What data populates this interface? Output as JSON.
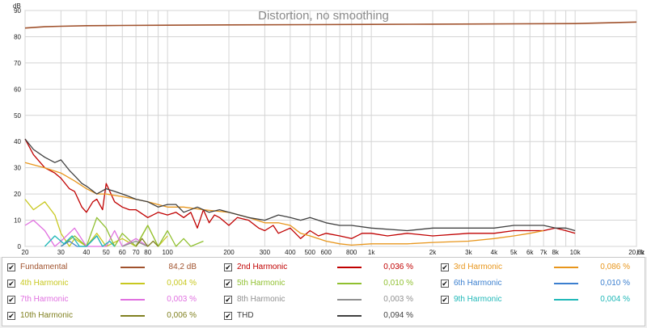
{
  "chart_data": {
    "type": "line",
    "title": "Distortion, no smoothing",
    "ylabel": "dB",
    "xunit": "Hz",
    "x_scale": "log",
    "xlim": [
      20,
      20000
    ],
    "ylim": [
      0,
      90
    ],
    "y_ticks": [
      "0",
      "10",
      "20",
      "30",
      "40",
      "50",
      "60",
      "70",
      "80",
      "90"
    ],
    "x_ticks": [
      {
        "value": 20,
        "label": "20"
      },
      {
        "value": 30,
        "label": "30"
      },
      {
        "value": 40,
        "label": "40"
      },
      {
        "value": 50,
        "label": "50"
      },
      {
        "value": 60,
        "label": "60"
      },
      {
        "value": 70,
        "label": "70"
      },
      {
        "value": 80,
        "label": "80"
      },
      {
        "value": 100,
        "label": "100"
      },
      {
        "value": 200,
        "label": "200"
      },
      {
        "value": 300,
        "label": "300"
      },
      {
        "value": 400,
        "label": "400"
      },
      {
        "value": 500,
        "label": "500"
      },
      {
        "value": 600,
        "label": "600"
      },
      {
        "value": 800,
        "label": "800"
      },
      {
        "value": 1000,
        "label": "1k"
      },
      {
        "value": 2000,
        "label": "2k"
      },
      {
        "value": 3000,
        "label": "3k"
      },
      {
        "value": 4000,
        "label": "4k"
      },
      {
        "value": 5000,
        "label": "5k"
      },
      {
        "value": 6000,
        "label": "6k"
      },
      {
        "value": 7000,
        "label": "7k"
      },
      {
        "value": 8000,
        "label": "8k"
      },
      {
        "value": 10000,
        "label": "10k"
      },
      {
        "value": 20000,
        "label": "20,0k"
      }
    ],
    "grid": true,
    "series": [
      {
        "name": "Fundamental",
        "value": "84,2 dB",
        "color": "#a0522d",
        "x": [
          20,
          25,
          30,
          40,
          60,
          100,
          200,
          500,
          1000,
          2000,
          5000,
          10000,
          20000
        ],
        "y": [
          83.3,
          83.8,
          84.0,
          84.2,
          84.3,
          84.4,
          84.5,
          84.6,
          84.7,
          84.8,
          84.9,
          85.0,
          85.6
        ]
      },
      {
        "name": "2nd Harmonic",
        "value": "0,036 %",
        "color": "#c00000",
        "x": [
          20,
          22,
          25,
          28,
          30,
          33,
          35,
          38,
          40,
          43,
          45,
          48,
          50,
          55,
          60,
          65,
          70,
          80,
          90,
          100,
          110,
          120,
          130,
          140,
          150,
          160,
          170,
          180,
          200,
          220,
          250,
          280,
          300,
          330,
          350,
          400,
          450,
          500,
          550,
          600,
          700,
          800,
          900,
          1000,
          1200,
          1500,
          2000,
          3000,
          4000,
          5000,
          6000,
          7000,
          8000,
          9000,
          10000
        ],
        "y": [
          41,
          35,
          30,
          28,
          26,
          22,
          21,
          15,
          13,
          17,
          18,
          14,
          24,
          17,
          15,
          14,
          14,
          11,
          13,
          12,
          13,
          11,
          13,
          7,
          14,
          9,
          12,
          11,
          8,
          11,
          10,
          7,
          6,
          8,
          5,
          7,
          3,
          6,
          4,
          5,
          4,
          3,
          5,
          5,
          4,
          5,
          4,
          5,
          5,
          6,
          6,
          6,
          7,
          6,
          5
        ]
      },
      {
        "name": "3rd Harmonic",
        "value": "0,086 %",
        "color": "#e8961c",
        "x": [
          20,
          25,
          30,
          35,
          40,
          45,
          50,
          60,
          70,
          80,
          100,
          120,
          150,
          200,
          250,
          300,
          350,
          400,
          450,
          500,
          600,
          700,
          800,
          1000,
          1500,
          2000,
          3000,
          4000,
          5000,
          6000,
          7000
        ],
        "y": [
          32,
          30,
          28,
          25,
          22,
          20,
          20,
          19,
          18,
          17,
          15,
          15,
          14,
          13,
          11,
          9,
          9,
          8,
          5,
          4,
          2,
          1,
          0.5,
          1,
          1,
          1.5,
          2,
          3,
          4,
          5,
          6
        ]
      },
      {
        "name": "4th Harmonic",
        "value": "0,004 %",
        "color": "#c8c820",
        "x": [
          20,
          22,
          25,
          28,
          30,
          33,
          35,
          40,
          45,
          50,
          60,
          70,
          80,
          90,
          100
        ],
        "y": [
          18,
          14,
          17,
          12,
          5,
          0,
          3,
          0,
          5,
          0,
          3,
          0,
          8,
          0,
          4
        ]
      },
      {
        "name": "5th Harmonic",
        "value": "0,010 %",
        "color": "#90c030",
        "x": [
          30,
          35,
          40,
          45,
          50,
          55,
          60,
          70,
          80,
          90,
          100,
          110,
          120,
          130,
          150
        ],
        "y": [
          0,
          4,
          0,
          11,
          7,
          0,
          5,
          0,
          8,
          0,
          6,
          0,
          3,
          0,
          2
        ]
      },
      {
        "name": "6th Harmonic",
        "value": "0,010 %",
        "color": "#3b7fcf",
        "x": [
          30,
          33,
          36,
          40,
          45,
          48
        ],
        "y": [
          0,
          2,
          0,
          0,
          4,
          0
        ]
      },
      {
        "name": "7th Harmonic",
        "value": "0,003 %",
        "color": "#e070e0",
        "x": [
          20,
          22,
          25,
          28,
          30,
          35,
          40,
          50,
          55,
          60,
          70,
          80
        ],
        "y": [
          8,
          10,
          6,
          0,
          2,
          7,
          0,
          0,
          6,
          0,
          3,
          0
        ]
      },
      {
        "name": "8th Harmonic",
        "value": "0,003 %",
        "color": "#909090",
        "x": [
          60,
          70,
          80
        ],
        "y": [
          0,
          2,
          0
        ]
      },
      {
        "name": "9th Harmonic",
        "value": "0,004 %",
        "color": "#20b8b8",
        "x": [
          25,
          28,
          31,
          34,
          37,
          40,
          45,
          48,
          52,
          55
        ],
        "y": [
          0,
          4,
          1,
          4,
          0,
          0,
          4,
          0,
          2,
          0
        ]
      },
      {
        "name": "10th Harmonic",
        "value": "0,006 %",
        "color": "#808020",
        "x": [
          70,
          75,
          80,
          85,
          90
        ],
        "y": [
          0,
          3,
          0,
          2,
          0
        ]
      },
      {
        "name": "THD",
        "value": "0,094 %",
        "color": "#404040",
        "x": [
          20,
          22,
          25,
          28,
          30,
          33,
          35,
          38,
          40,
          45,
          50,
          55,
          60,
          65,
          70,
          80,
          90,
          100,
          110,
          120,
          140,
          160,
          180,
          200,
          250,
          300,
          350,
          400,
          450,
          500,
          600,
          700,
          800,
          1000,
          1500,
          2000,
          3000,
          4000,
          5000,
          6000,
          7000,
          8000,
          9000,
          10000
        ],
        "y": [
          41,
          37,
          34,
          32,
          33,
          29,
          27,
          24,
          23,
          20,
          22,
          21,
          20,
          19,
          18,
          17,
          15,
          16,
          16,
          13,
          15,
          13,
          14,
          13,
          11,
          10,
          12,
          11,
          10,
          11,
          9,
          8,
          8,
          7,
          6,
          7,
          7,
          7,
          8,
          8,
          8,
          7,
          7,
          6
        ]
      }
    ]
  }
}
